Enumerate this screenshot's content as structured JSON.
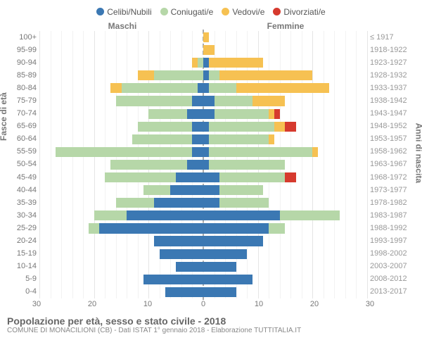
{
  "type": "population-pyramid",
  "legend": [
    {
      "label": "Celibi/Nubili",
      "color": "#3b78b3"
    },
    {
      "label": "Coniugati/e",
      "color": "#b6d7a8"
    },
    {
      "label": "Vedovi/e",
      "color": "#f6c152"
    },
    {
      "label": "Divorziati/e",
      "color": "#d63a2e"
    }
  ],
  "header_male": "Maschi",
  "header_female": "Femmine",
  "y_axis_left_title": "Fasce di età",
  "y_axis_right_title": "Anni di nascita",
  "x_axis_max": 30,
  "x_ticks": [
    30,
    20,
    10,
    0,
    10,
    20,
    30
  ],
  "grid_color_major": "#e5e5e5",
  "grid_color_minor": "#f2f2f2",
  "background_color": "#ffffff",
  "center_line_color": "#aaaaaa",
  "bar_height_ratio": 0.78,
  "tick_fontsize": 11,
  "label_color": "#777777",
  "footer_title": "Popolazione per età, sesso e stato civile - 2018",
  "footer_sub": "COMUNE DI MONACILIONI (CB) - Dati ISTAT 1° gennaio 2018 - Elaborazione TUTTITALIA.IT",
  "rows_top_to_bottom": [
    {
      "age": "100+",
      "birth": "≤ 1917",
      "m": {
        "c": 0,
        "k": 0,
        "w": 0,
        "d": 0
      },
      "f": {
        "c": 0,
        "k": 0,
        "w": 1,
        "d": 0
      }
    },
    {
      "age": "95-99",
      "birth": "1918-1922",
      "m": {
        "c": 0,
        "k": 0,
        "w": 0,
        "d": 0
      },
      "f": {
        "c": 0,
        "k": 0,
        "w": 2,
        "d": 0
      }
    },
    {
      "age": "90-94",
      "birth": "1923-1927",
      "m": {
        "c": 0,
        "k": 1,
        "w": 1,
        "d": 0
      },
      "f": {
        "c": 1,
        "k": 0,
        "w": 10,
        "d": 0
      }
    },
    {
      "age": "85-89",
      "birth": "1928-1932",
      "m": {
        "c": 0,
        "k": 9,
        "w": 3,
        "d": 0
      },
      "f": {
        "c": 1,
        "k": 2,
        "w": 17,
        "d": 0
      }
    },
    {
      "age": "80-84",
      "birth": "1933-1937",
      "m": {
        "c": 1,
        "k": 14,
        "w": 2,
        "d": 0
      },
      "f": {
        "c": 1,
        "k": 5,
        "w": 17,
        "d": 0
      }
    },
    {
      "age": "75-79",
      "birth": "1938-1942",
      "m": {
        "c": 2,
        "k": 14,
        "w": 0,
        "d": 0
      },
      "f": {
        "c": 2,
        "k": 7,
        "w": 6,
        "d": 0
      }
    },
    {
      "age": "70-74",
      "birth": "1943-1947",
      "m": {
        "c": 3,
        "k": 7,
        "w": 0,
        "d": 0
      },
      "f": {
        "c": 2,
        "k": 10,
        "w": 1,
        "d": 1
      }
    },
    {
      "age": "65-69",
      "birth": "1948-1952",
      "m": {
        "c": 2,
        "k": 10,
        "w": 0,
        "d": 0
      },
      "f": {
        "c": 1,
        "k": 12,
        "w": 2,
        "d": 2
      }
    },
    {
      "age": "60-64",
      "birth": "1953-1957",
      "m": {
        "c": 2,
        "k": 11,
        "w": 0,
        "d": 0
      },
      "f": {
        "c": 1,
        "k": 11,
        "w": 1,
        "d": 0
      }
    },
    {
      "age": "55-59",
      "birth": "1958-1962",
      "m": {
        "c": 2,
        "k": 25,
        "w": 0,
        "d": 0
      },
      "f": {
        "c": 1,
        "k": 19,
        "w": 1,
        "d": 0
      }
    },
    {
      "age": "50-54",
      "birth": "1963-1967",
      "m": {
        "c": 3,
        "k": 14,
        "w": 0,
        "d": 0
      },
      "f": {
        "c": 1,
        "k": 14,
        "w": 0,
        "d": 0
      }
    },
    {
      "age": "45-49",
      "birth": "1968-1972",
      "m": {
        "c": 5,
        "k": 13,
        "w": 0,
        "d": 0
      },
      "f": {
        "c": 3,
        "k": 12,
        "w": 0,
        "d": 2
      }
    },
    {
      "age": "40-44",
      "birth": "1973-1977",
      "m": {
        "c": 6,
        "k": 5,
        "w": 0,
        "d": 0
      },
      "f": {
        "c": 3,
        "k": 8,
        "w": 0,
        "d": 0
      }
    },
    {
      "age": "35-39",
      "birth": "1978-1982",
      "m": {
        "c": 9,
        "k": 7,
        "w": 0,
        "d": 0
      },
      "f": {
        "c": 3,
        "k": 9,
        "w": 0,
        "d": 0
      }
    },
    {
      "age": "30-34",
      "birth": "1983-1987",
      "m": {
        "c": 14,
        "k": 6,
        "w": 0,
        "d": 0
      },
      "f": {
        "c": 14,
        "k": 11,
        "w": 0,
        "d": 0
      }
    },
    {
      "age": "25-29",
      "birth": "1988-1992",
      "m": {
        "c": 19,
        "k": 2,
        "w": 0,
        "d": 0
      },
      "f": {
        "c": 12,
        "k": 3,
        "w": 0,
        "d": 0
      }
    },
    {
      "age": "20-24",
      "birth": "1993-1997",
      "m": {
        "c": 9,
        "k": 0,
        "w": 0,
        "d": 0
      },
      "f": {
        "c": 11,
        "k": 0,
        "w": 0,
        "d": 0
      }
    },
    {
      "age": "15-19",
      "birth": "1998-2002",
      "m": {
        "c": 8,
        "k": 0,
        "w": 0,
        "d": 0
      },
      "f": {
        "c": 8,
        "k": 0,
        "w": 0,
        "d": 0
      }
    },
    {
      "age": "10-14",
      "birth": "2003-2007",
      "m": {
        "c": 5,
        "k": 0,
        "w": 0,
        "d": 0
      },
      "f": {
        "c": 6,
        "k": 0,
        "w": 0,
        "d": 0
      }
    },
    {
      "age": "5-9",
      "birth": "2008-2012",
      "m": {
        "c": 11,
        "k": 0,
        "w": 0,
        "d": 0
      },
      "f": {
        "c": 9,
        "k": 0,
        "w": 0,
        "d": 0
      }
    },
    {
      "age": "0-4",
      "birth": "2013-2017",
      "m": {
        "c": 7,
        "k": 0,
        "w": 0,
        "d": 0
      },
      "f": {
        "c": 6,
        "k": 0,
        "w": 0,
        "d": 0
      }
    }
  ]
}
